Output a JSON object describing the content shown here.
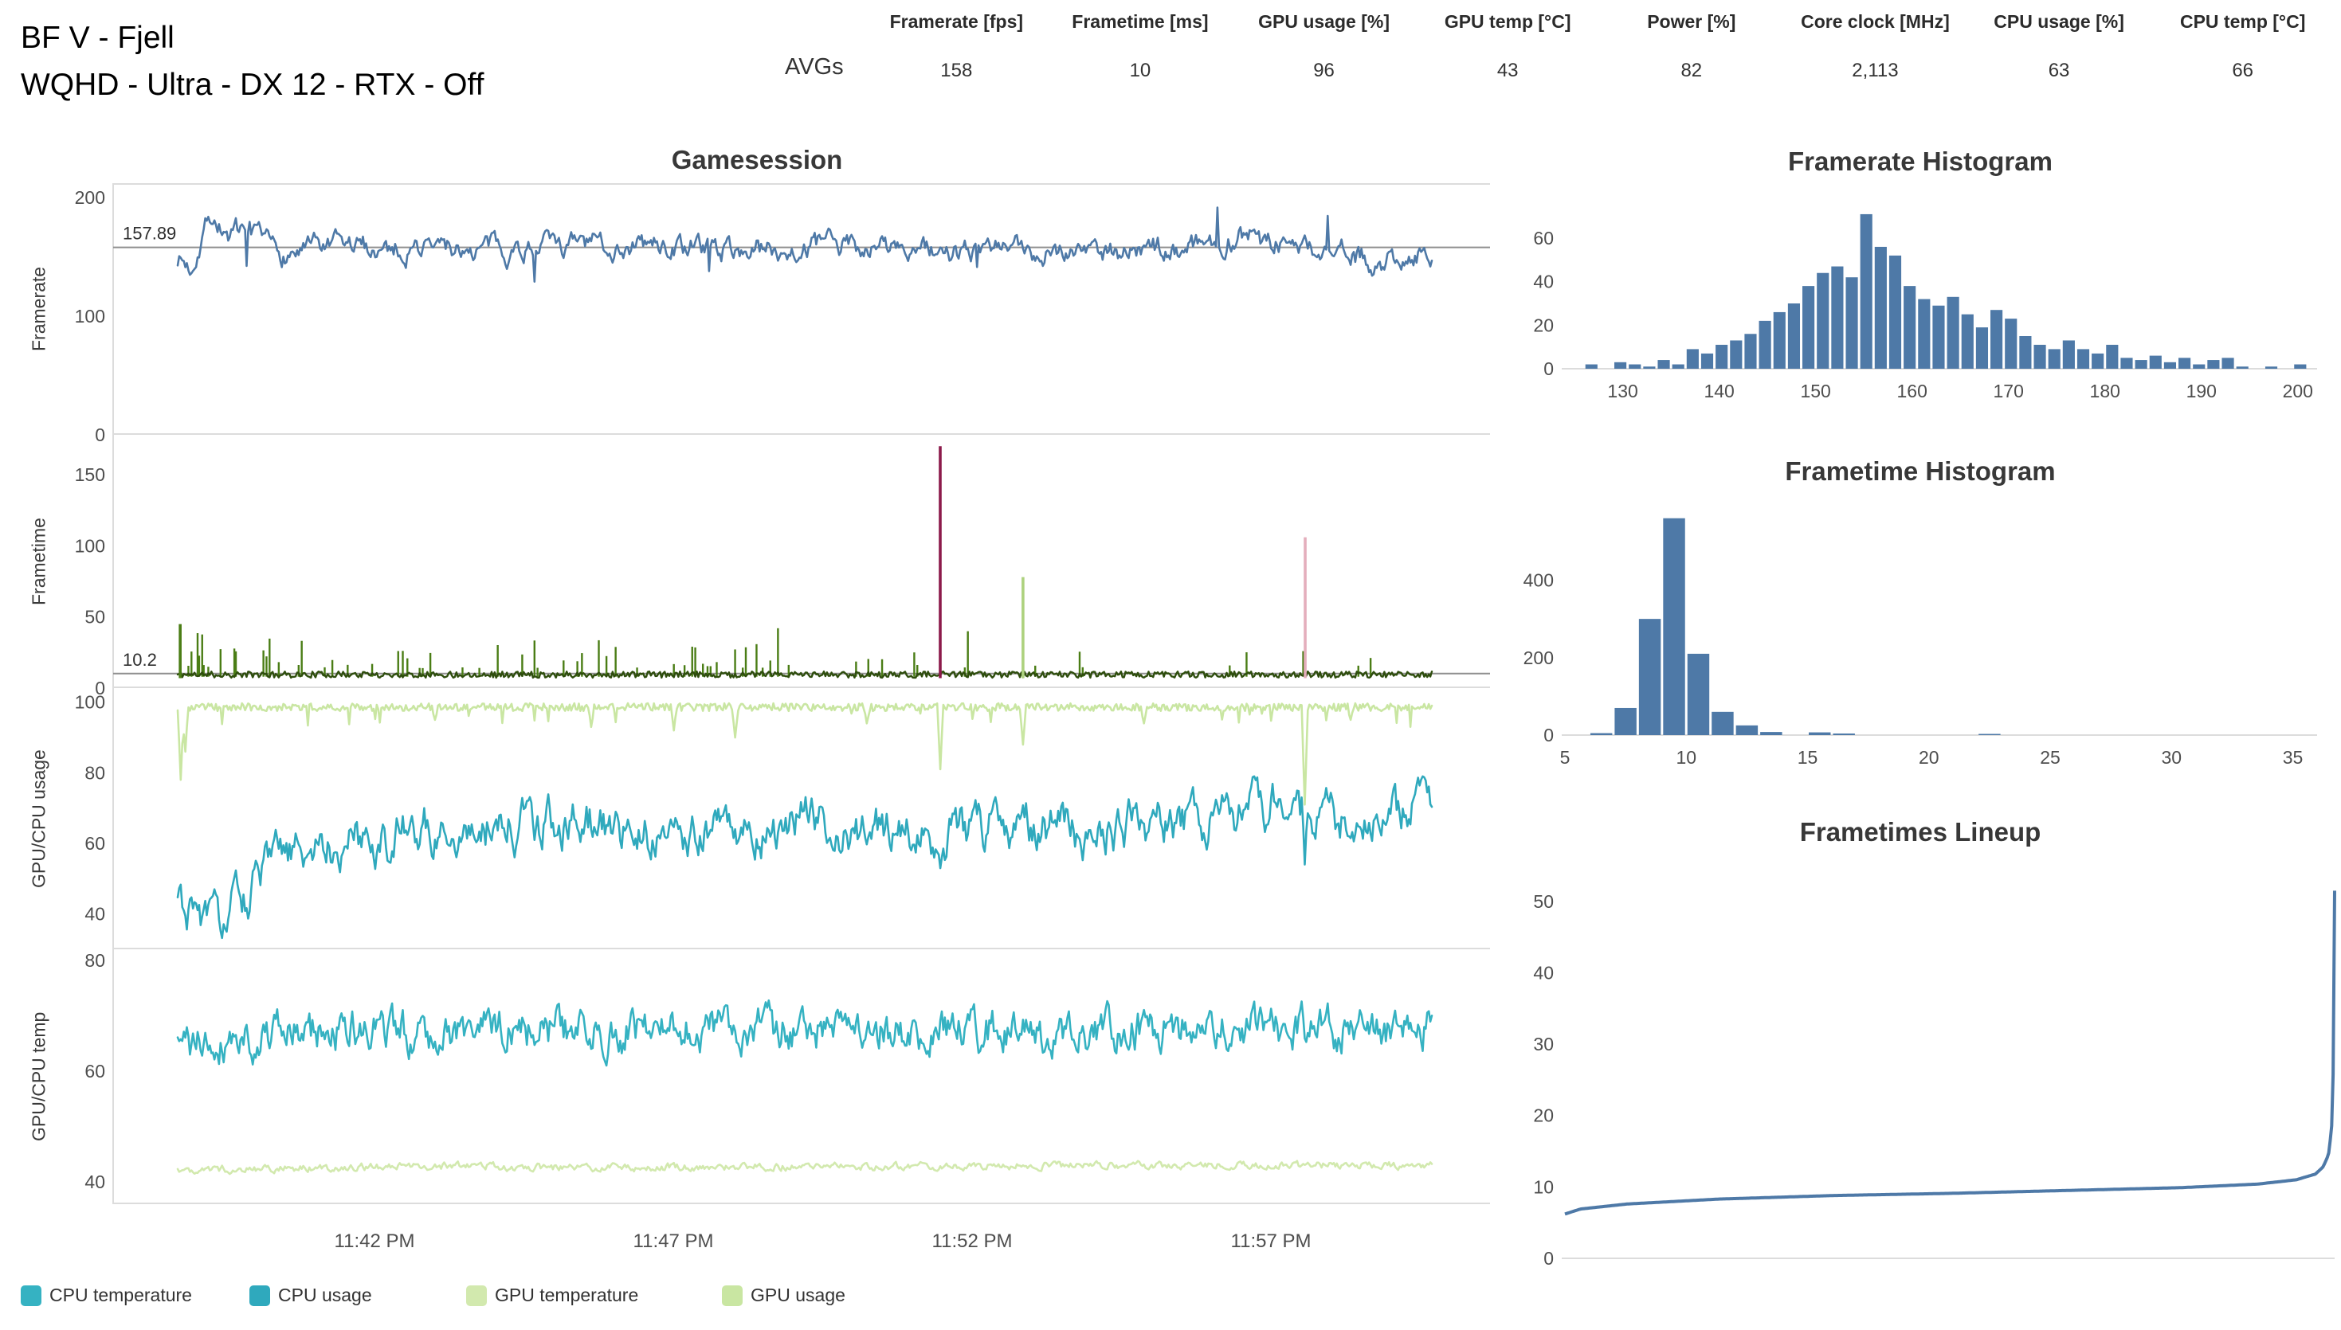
{
  "header": {
    "title_line1": "BF V - Fjell",
    "title_line2": "WQHD - Ultra - DX 12 - RTX - Off",
    "avgs_label": "AVGs",
    "metrics": [
      {
        "label": "Framerate [fps]",
        "value": "158"
      },
      {
        "label": "Frametime [ms]",
        "value": "10"
      },
      {
        "label": "GPU usage [%]",
        "value": "96"
      },
      {
        "label": "GPU temp [°C]",
        "value": "43"
      },
      {
        "label": "Power [%]",
        "value": "82"
      },
      {
        "label": "Core clock [MHz]",
        "value": "2,113"
      },
      {
        "label": "CPU usage [%]",
        "value": "63"
      },
      {
        "label": "CPU temp [°C]",
        "value": "66"
      }
    ]
  },
  "gamesession": {
    "title": "Gamesession",
    "x_tick_labels": [
      "11:42 PM",
      "11:47 PM",
      "11:52 PM",
      "11:57 PM"
    ]
  },
  "legend": [
    {
      "label": "CPU temperature",
      "color": "#35b2c2"
    },
    {
      "label": "CPU usage",
      "color": "#2fa9bd"
    },
    {
      "label": "GPU temperature",
      "color": "#d2e9ae"
    },
    {
      "label": "GPU usage",
      "color": "#c9e6a2"
    }
  ],
  "chart_data": [
    {
      "id": "framerate_line",
      "type": "line",
      "panel_title": "Gamesession",
      "ylabel": "Framerate",
      "ylim": [
        0,
        212
      ],
      "yticks": [
        0,
        100,
        200
      ],
      "average": 157.89,
      "average_label": "157.89",
      "color": "#4e79a7",
      "x_tick_labels": [
        "11:42 PM",
        "11:47 PM",
        "11:52 PM",
        "11:57 PM"
      ],
      "model": {
        "seed": 7,
        "n": 820,
        "step": 15,
        "decay": 0.74,
        "clamp": [
          129,
          201
        ],
        "burst_p": 0.015,
        "burst_amp": 55,
        "control": [
          [
            0,
            150
          ],
          [
            0.01,
            140
          ],
          [
            0.025,
            188
          ],
          [
            0.04,
            168
          ],
          [
            0.08,
            153
          ],
          [
            0.15,
            158
          ],
          [
            0.25,
            157
          ],
          [
            0.35,
            160
          ],
          [
            0.45,
            156
          ],
          [
            0.55,
            160
          ],
          [
            0.62,
            152
          ],
          [
            0.7,
            158
          ],
          [
            0.78,
            155
          ],
          [
            0.85,
            168
          ],
          [
            0.9,
            158
          ],
          [
            0.96,
            146
          ],
          [
            1,
            158
          ]
        ]
      }
    },
    {
      "id": "frametime_line",
      "type": "line",
      "ylabel": "Frametime",
      "ylim": [
        0,
        178
      ],
      "yticks": [
        0,
        50,
        100,
        150
      ],
      "average": 10.2,
      "average_label": "10.2",
      "color": "#2e4d0d",
      "minor_spike_color": "#4a7d15",
      "model": {
        "seed": 11,
        "n": 820,
        "base": 9.5,
        "jitter": 2.2,
        "zones": [
          [
            0,
            0.05,
            0.22
          ],
          [
            0.05,
            0.3,
            0.1
          ],
          [
            0.3,
            0.5,
            0.12
          ],
          [
            0.5,
            0.58,
            0.04
          ],
          [
            0.58,
            1,
            0.035
          ]
        ],
        "minor_spike_min": 14,
        "minor_spike_max": 48
      },
      "major_spikes": [
        {
          "pos": 0.002,
          "value": 45,
          "color": "#4a7d15"
        },
        {
          "pos": 0.608,
          "value": 170,
          "color": "#8c1a4b"
        },
        {
          "pos": 0.674,
          "value": 78,
          "color": "#aed27f"
        },
        {
          "pos": 0.899,
          "value": 106,
          "color": "#e4aebc"
        }
      ]
    },
    {
      "id": "usage_lines",
      "type": "line",
      "ylabel": "GPU/CPU usage",
      "ylim": [
        30,
        104
      ],
      "yticks": [
        40,
        60,
        80,
        100
      ],
      "series": [
        {
          "name": "GPU usage",
          "color": "#c9e6a2",
          "model": {
            "seed": 23,
            "n": 820,
            "base": 98.6,
            "jitter": 1.1,
            "drop_p": 0.02,
            "drop_range": [
              93,
              97
            ],
            "dips": [
              [
                0.002,
                78
              ],
              [
                0.006,
                86
              ],
              [
                0.205,
                95
              ],
              [
                0.33,
                93
              ],
              [
                0.395,
                92
              ],
              [
                0.445,
                90
              ],
              [
                0.55,
                94
              ],
              [
                0.608,
                81
              ],
              [
                0.674,
                88
              ],
              [
                0.77,
                94
              ],
              [
                0.899,
                71
              ],
              [
                0.935,
                95
              ]
            ]
          }
        },
        {
          "name": "CPU usage",
          "color": "#2fa9bd",
          "model": {
            "seed": 31,
            "n": 820,
            "step": 10,
            "decay": 0.72,
            "clamp": [
              33,
              79
            ],
            "control": [
              [
                0,
                43
              ],
              [
                0.015,
                40
              ],
              [
                0.03,
                36
              ],
              [
                0.05,
                44
              ],
              [
                0.08,
                55
              ],
              [
                0.12,
                60
              ],
              [
                0.2,
                64
              ],
              [
                0.3,
                67
              ],
              [
                0.4,
                63
              ],
              [
                0.5,
                66
              ],
              [
                0.6,
                62
              ],
              [
                0.65,
                65
              ],
              [
                0.72,
                63
              ],
              [
                0.8,
                66
              ],
              [
                0.88,
                70
              ],
              [
                0.94,
                64
              ],
              [
                1,
                71
              ]
            ],
            "dips": [
              [
                0.608,
                53
              ],
              [
                0.899,
                54
              ]
            ]
          }
        }
      ]
    },
    {
      "id": "temp_lines",
      "type": "line",
      "ylabel": "GPU/CPU temp",
      "ylim": [
        36,
        82
      ],
      "yticks": [
        40,
        60,
        80
      ],
      "series": [
        {
          "name": "CPU temperature",
          "color": "#35b2c2",
          "model": {
            "seed": 41,
            "n": 820,
            "step": 6,
            "decay": 0.62,
            "clamp": [
              60,
              74
            ],
            "control": [
              [
                0,
                64
              ],
              [
                0.04,
                66
              ],
              [
                0.1,
                67
              ],
              [
                0.3,
                67.5
              ],
              [
                0.6,
                67
              ],
              [
                1,
                67.5
              ]
            ]
          }
        },
        {
          "name": "GPU temperature",
          "color": "#d2e9ae",
          "model": {
            "seed": 47,
            "n": 820,
            "step": 1.1,
            "decay": 0.55,
            "clamp": [
              41.2,
              44.2
            ],
            "control": [
              [
                0,
                42.2
              ],
              [
                0.25,
                43
              ],
              [
                0.26,
                42.6
              ],
              [
                0.5,
                42.8
              ],
              [
                0.75,
                43
              ],
              [
                1,
                43
              ]
            ]
          }
        }
      ]
    },
    {
      "id": "framerate_histogram",
      "type": "bar",
      "title": "Framerate Histogram",
      "bin_start": 126,
      "bin_width": 1.5,
      "counts": [
        2,
        0,
        3,
        2,
        1,
        4,
        2,
        9,
        7,
        11,
        13,
        16,
        22,
        26,
        30,
        38,
        44,
        47,
        42,
        71,
        56,
        52,
        38,
        32,
        29,
        33,
        25,
        19,
        27,
        23,
        15,
        11,
        9,
        13,
        9,
        7,
        11,
        5,
        4,
        6,
        3,
        5,
        2,
        4,
        5,
        1,
        0,
        1,
        0,
        2
      ],
      "xlim": [
        124,
        202
      ],
      "xticks": [
        130,
        140,
        150,
        160,
        170,
        180,
        190,
        200
      ],
      "ylim": [
        0,
        75
      ],
      "yticks": [
        0,
        20,
        40,
        60
      ],
      "color": "#4e79a7"
    },
    {
      "id": "frametime_histogram",
      "type": "bar",
      "title": "Frametime Histogram",
      "bin_start": 6,
      "bin_width": 1,
      "counts": [
        5,
        70,
        300,
        560,
        210,
        60,
        25,
        8,
        0,
        7,
        4,
        0,
        0,
        0,
        0,
        0,
        3,
        0,
        0,
        0,
        0,
        0,
        0,
        0,
        0,
        0,
        0,
        0,
        0,
        0
      ],
      "xlim": [
        5,
        36
      ],
      "xticks": [
        5,
        10,
        15,
        20,
        25,
        30,
        35
      ],
      "ylim": [
        0,
        580
      ],
      "yticks": [
        0,
        200,
        400
      ],
      "color": "#4e79a7"
    },
    {
      "id": "frametimes_lineup",
      "type": "line",
      "title": "Frametimes Lineup",
      "ylim": [
        0,
        54
      ],
      "yticks": [
        0,
        10,
        20,
        30,
        40,
        50
      ],
      "color": "#4e79a7",
      "curve_points": [
        [
          0,
          6.2
        ],
        [
          0.02,
          6.9
        ],
        [
          0.08,
          7.6
        ],
        [
          0.2,
          8.3
        ],
        [
          0.35,
          8.8
        ],
        [
          0.5,
          9.1
        ],
        [
          0.65,
          9.5
        ],
        [
          0.8,
          9.9
        ],
        [
          0.9,
          10.4
        ],
        [
          0.95,
          11.0
        ],
        [
          0.975,
          11.8
        ],
        [
          0.985,
          12.8
        ],
        [
          0.992,
          14.5
        ],
        [
          0.996,
          18
        ],
        [
          0.998,
          25
        ],
        [
          0.999,
          35
        ],
        [
          1,
          51.5
        ]
      ]
    }
  ]
}
